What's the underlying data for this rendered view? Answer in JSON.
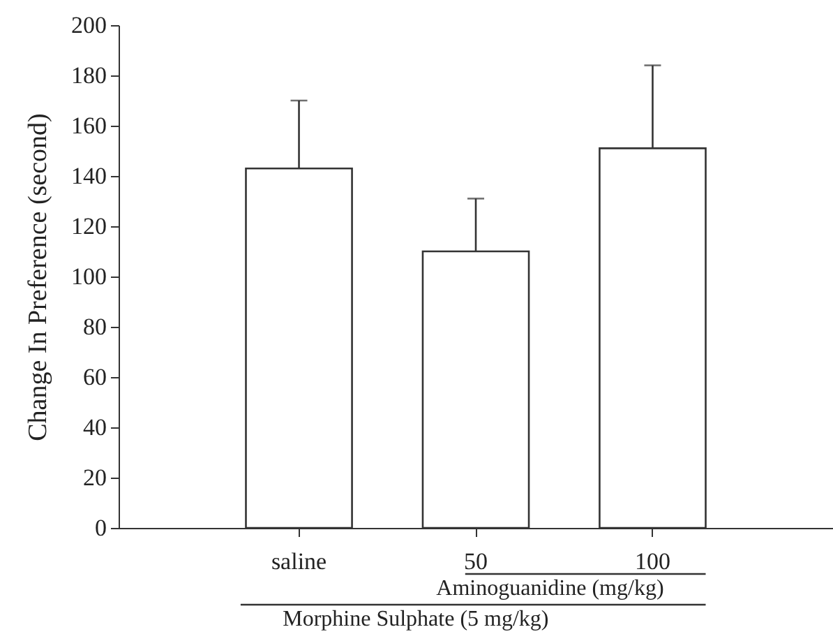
{
  "chart_data": {
    "type": "bar",
    "categories": [
      "saline",
      "50",
      "100"
    ],
    "values": [
      143,
      110,
      151
    ],
    "errors": [
      [
        143,
        170
      ],
      [
        110,
        131
      ],
      [
        151,
        184
      ]
    ],
    "color": "#ffffff",
    "ylabel": "Change In Preference (second)",
    "xlabel": "Morphine Sulphate (5 mg/kg)",
    "annotations": [
      "Aminoguanidine (mg/kg)"
    ],
    "ylim": [
      0,
      200
    ],
    "yticks": [
      0,
      20,
      40,
      60,
      80,
      100,
      120,
      140,
      160,
      180,
      200
    ],
    "grid": false
  }
}
